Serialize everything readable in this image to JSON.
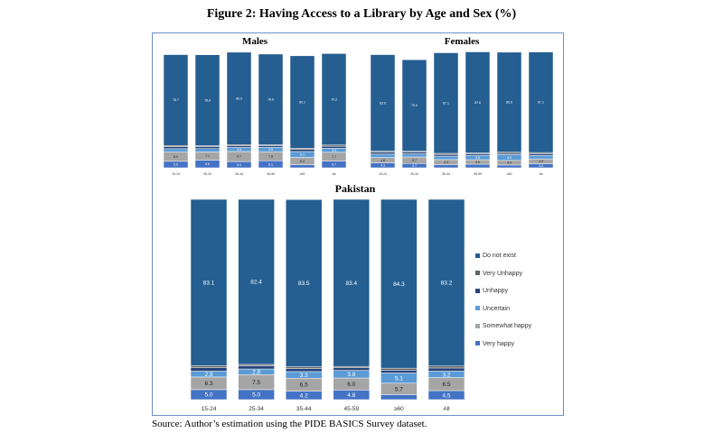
{
  "figure": {
    "title": "Figure 2: Having Access to a Library by Age and Sex (%)",
    "source": "Source: Author’s estimation using the PIDE BASICS Survey dataset."
  },
  "chart_data": [
    {
      "type": "bar",
      "stacked": true,
      "title": "Pakistan",
      "categories": [
        "15-24",
        "25-34",
        "35-44",
        "45-59",
        "≥60",
        "All"
      ],
      "ylim": [
        0,
        100
      ],
      "legend_placement": "right",
      "series": [
        {
          "name": "Very happy",
          "color": "#4472c4",
          "values": [
            5.0,
            5.0,
            4.2,
            4.8,
            2.5,
            4.5
          ]
        },
        {
          "name": "Somewhat happy",
          "color": "#a5a5a5",
          "values": [
            6.3,
            7.5,
            6.5,
            6.0,
            5.7,
            6.5
          ]
        },
        {
          "name": "Uncertain",
          "color": "#5b9bd5",
          "values": [
            2.9,
            2.8,
            3.3,
            3.8,
            5.1,
            3.2
          ]
        },
        {
          "name": "Unhappy",
          "color": "#264478",
          "values": [
            1.7,
            1.6,
            1.5,
            1.3,
            1.4,
            1.6
          ]
        },
        {
          "name": "Very Unhappy",
          "color": "#636363",
          "values": [
            1.0,
            0.7,
            0.9,
            0.7,
            1.0,
            1.0
          ]
        },
        {
          "name": "Do not exist",
          "color": "#255e91",
          "values": [
            83.1,
            82.4,
            83.5,
            83.4,
            84.3,
            83.2
          ]
        }
      ]
    },
    {
      "type": "bar",
      "stacked": true,
      "title": "Males",
      "categories": [
        "15-24",
        "25-34",
        "35-44",
        "45-59",
        "≥60",
        "All"
      ],
      "ylim": [
        0,
        100
      ],
      "series": [
        {
          "name": "Very happy",
          "color": "#4472c4",
          "values": [
            5.6,
            6.6,
            5.4,
            6.1,
            2.6,
            5.7
          ]
        },
        {
          "name": "Somewhat happy",
          "color": "#a5a5a5",
          "values": [
            8.0,
            7.1,
            8.7,
            7.8,
            6.4,
            7.7
          ]
        },
        {
          "name": "Uncertain",
          "color": "#5b9bd5",
          "values": [
            2.9,
            2.9,
            3.5,
            3.8,
            5.1,
            3.5
          ]
        },
        {
          "name": "Unhappy",
          "color": "#264478",
          "values": [
            1.8,
            1.8,
            1.6,
            1.5,
            1.8,
            1.8
          ]
        },
        {
          "name": "Very Unhappy",
          "color": "#636363",
          "values": [
            1.0,
            0.7,
            0.9,
            0.7,
            1.0,
            1.0
          ]
        },
        {
          "name": "Do not exist",
          "color": "#255e91",
          "values": [
            78.7,
            78.8,
            80.0,
            78.6,
            80.1,
            79.2
          ]
        }
      ]
    },
    {
      "type": "bar",
      "stacked": true,
      "title": "Females",
      "categories": [
        "15-24",
        "25-34",
        "35-44",
        "45-59",
        "≥60",
        "All"
      ],
      "ylim": [
        0,
        100
      ],
      "series": [
        {
          "name": "Very happy",
          "color": "#4472c4",
          "values": [
            4.3,
            3.7,
            2.8,
            3.1,
            2.4,
            3.4
          ]
        },
        {
          "name": "Somewhat happy",
          "color": "#a5a5a5",
          "values": [
            4.6,
            5.7,
            4.3,
            3.9,
            4.0,
            4.3
          ]
        },
        {
          "name": "Uncertain",
          "color": "#5b9bd5",
          "values": [
            2.9,
            2.7,
            3.0,
            3.8,
            4.9,
            3.0
          ]
        },
        {
          "name": "Unhappy",
          "color": "#264478",
          "values": [
            1.6,
            1.5,
            1.5,
            1.3,
            1.2,
            1.5
          ]
        },
        {
          "name": "Very Unhappy",
          "color": "#636363",
          "values": [
            1.0,
            0.7,
            0.9,
            0.7,
            1.0,
            1.0
          ]
        },
        {
          "name": "Do not exist",
          "color": "#255e91",
          "values": [
            83.6,
            79.3,
            87.1,
            87.6,
            86.6,
            87.1
          ]
        }
      ]
    }
  ]
}
